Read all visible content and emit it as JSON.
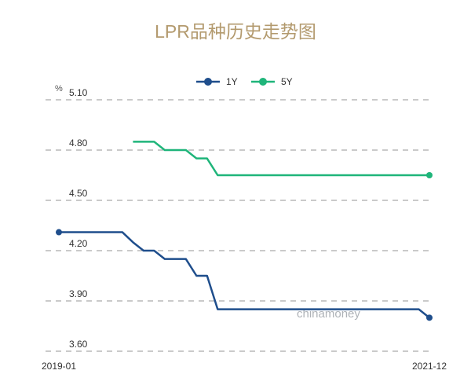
{
  "chart_data": {
    "type": "line",
    "title": "LPR品种历史走势图",
    "ylabel": "%",
    "ylim": [
      3.6,
      5.1
    ],
    "yticks": [
      "5.10",
      "4.80",
      "4.50",
      "4.20",
      "3.90",
      "3.60"
    ],
    "xtick_labels": [
      "2019-01",
      "2021-12"
    ],
    "grid": true,
    "legend": "top-center",
    "watermark": "chinamoney",
    "x": [
      "2019-01",
      "2019-02",
      "2019-03",
      "2019-04",
      "2019-05",
      "2019-06",
      "2019-07",
      "2019-08",
      "2019-09",
      "2019-10",
      "2019-11",
      "2019-12",
      "2020-01",
      "2020-02",
      "2020-03",
      "2020-04",
      "2020-05",
      "2020-06",
      "2020-07",
      "2020-08",
      "2020-09",
      "2020-10",
      "2020-11",
      "2020-12",
      "2021-01",
      "2021-02",
      "2021-03",
      "2021-04",
      "2021-05",
      "2021-06",
      "2021-07",
      "2021-08",
      "2021-09",
      "2021-10",
      "2021-11",
      "2021-12"
    ],
    "series": [
      {
        "name": "1Y",
        "color": "#1f4e8c",
        "values": [
          4.31,
          4.31,
          4.31,
          4.31,
          4.31,
          4.31,
          4.31,
          4.25,
          4.2,
          4.2,
          4.15,
          4.15,
          4.15,
          4.05,
          4.05,
          3.85,
          3.85,
          3.85,
          3.85,
          3.85,
          3.85,
          3.85,
          3.85,
          3.85,
          3.85,
          3.85,
          3.85,
          3.85,
          3.85,
          3.85,
          3.85,
          3.85,
          3.85,
          3.85,
          3.85,
          3.8
        ]
      },
      {
        "name": "5Y",
        "color": "#1fb57a",
        "values": [
          null,
          null,
          null,
          null,
          null,
          null,
          null,
          4.85,
          4.85,
          4.85,
          4.8,
          4.8,
          4.8,
          4.75,
          4.75,
          4.65,
          4.65,
          4.65,
          4.65,
          4.65,
          4.65,
          4.65,
          4.65,
          4.65,
          4.65,
          4.65,
          4.65,
          4.65,
          4.65,
          4.65,
          4.65,
          4.65,
          4.65,
          4.65,
          4.65,
          4.65
        ]
      }
    ]
  }
}
